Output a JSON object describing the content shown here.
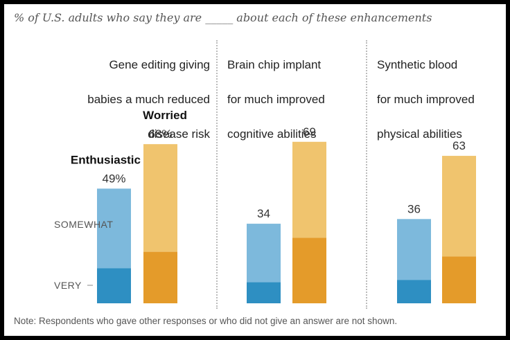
{
  "subtitle": "% of U.S. adults who say they are _____ about each of these enhancements",
  "note": "Note: Respondents who gave other responses or who did not give an answer are not shown.",
  "colors": {
    "enthusiastic_very": "#2e8fc2",
    "enthusiastic_somewhat": "#7db9dc",
    "worried_very": "#e49b2a",
    "worried_somewhat": "#f0c46e",
    "divider": "#bbbbbb"
  },
  "chart_data": {
    "type": "bar",
    "stacked": true,
    "grid": false,
    "legend": "inline",
    "ylim": [
      0,
      80
    ],
    "title": "% of U.S. adults who say they are _____ about each of these enhancements",
    "scale_labels": [
      "SOMEWHAT",
      "VERY"
    ],
    "series_labels": [
      "Enthusiastic",
      "Worried"
    ],
    "categories": [
      "Gene editing giving babies a much reduced disease risk",
      "Brain chip implant for much improved cognitive abilities",
      "Synthetic blood for much improved physical abilities"
    ],
    "category_lines": [
      [
        "Gene editing giving",
        "babies a much reduced",
        "disease risk"
      ],
      [
        "Brain chip implant",
        "for much improved",
        "cognitive abilities"
      ],
      [
        "Synthetic blood",
        "for much improved",
        "physical abilities"
      ]
    ],
    "totals": {
      "enthusiastic": [
        49,
        34,
        36
      ],
      "worried": [
        68,
        69,
        63
      ]
    },
    "total_labels": {
      "enthusiastic": [
        "49%",
        "34",
        "36"
      ],
      "worried": [
        "68%",
        "69",
        "63"
      ]
    },
    "very": {
      "enthusiastic": [
        15,
        9,
        10
      ],
      "worried": [
        22,
        28,
        20
      ]
    }
  }
}
